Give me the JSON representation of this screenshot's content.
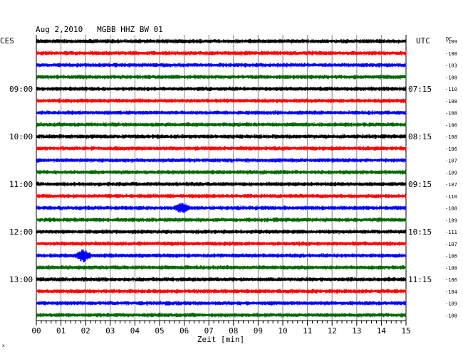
{
  "chart_data": {
    "type": "line",
    "title": "Aug 2,2010   MGBB HHZ BW 01",
    "left_label": "CES",
    "right_label": "UTC",
    "dc_label": "DC",
    "xlabel": "Zeit [min]",
    "x_ticks": [
      "00",
      "01",
      "02",
      "03",
      "04",
      "05",
      "06",
      "07",
      "08",
      "09",
      "10",
      "11",
      "12",
      "13",
      "14",
      "15"
    ],
    "xlim": [
      0,
      15
    ],
    "left_hour_labels": [
      {
        "row": 4,
        "text": "09:00"
      },
      {
        "row": 8,
        "text": "10:00"
      },
      {
        "row": 12,
        "text": "11:00"
      },
      {
        "row": 16,
        "text": "12:00"
      },
      {
        "row": 20,
        "text": "13:00"
      }
    ],
    "right_hour_labels": [
      {
        "row": 4,
        "text": "07:15"
      },
      {
        "row": 8,
        "text": "08:15"
      },
      {
        "row": 12,
        "text": "09:15"
      },
      {
        "row": 16,
        "text": "10:15"
      },
      {
        "row": 20,
        "text": "11:15"
      }
    ],
    "trace_colors": [
      "#000000",
      "#ff0000",
      "#0000ff",
      "#006600"
    ],
    "dc_offsets": [
      -109,
      -108,
      -103,
      -108,
      -110,
      -108,
      -108,
      -106,
      -108,
      -106,
      -107,
      -109,
      -107,
      -110,
      -108,
      -109,
      -111,
      -107,
      -106,
      -108,
      -106,
      -104,
      -109,
      -108
    ],
    "events": [
      {
        "row": 14,
        "minute": 5.9,
        "amplitude": 2.0
      },
      {
        "row": 18,
        "minute": 1.9,
        "amplitude": 2.6
      }
    ],
    "grid": true
  },
  "footer_mark": "x"
}
